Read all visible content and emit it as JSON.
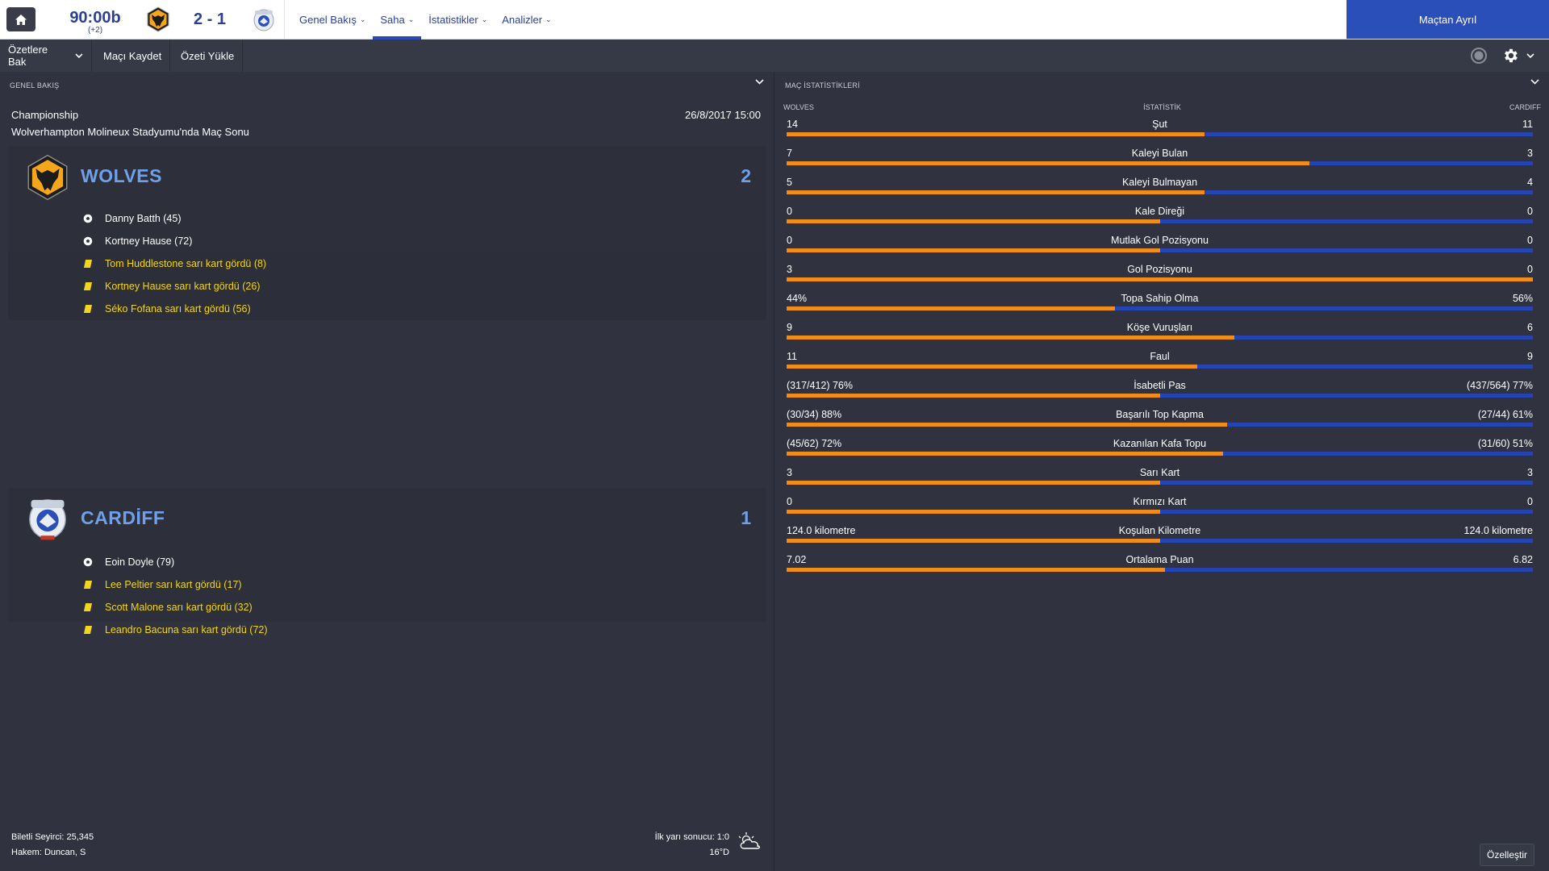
{
  "header": {
    "clock": "90:00b",
    "added_time": "(+2)",
    "score": "2 - 1",
    "home_badge": "wolves-badge-icon",
    "away_badge": "cardiff-badge-icon",
    "nav": [
      {
        "label": "Genel Bakış",
        "active": false
      },
      {
        "label": "Saha",
        "active": true
      },
      {
        "label": "İstatistikler",
        "active": false
      },
      {
        "label": "Analizler",
        "active": false
      }
    ],
    "leave_button": "Maçtan Ayrıl",
    "accent": "#2b4fb8"
  },
  "toolbar": {
    "highlights": "Özetlere Bak",
    "save_match": "Maçı Kaydet",
    "load_summary": "Özeti Yükle"
  },
  "overview": {
    "title": "GENEL BAKIŞ",
    "competition": "Championship",
    "venue": "Wolverhampton Molineux Stadyumu'nda Maç Sonu",
    "kickoff": "26/8/2017 15:00",
    "home": {
      "name": "WOLVES",
      "goals": "2",
      "events": [
        {
          "type": "goal",
          "text": "Danny Batth (45)"
        },
        {
          "type": "goal",
          "text": "Kortney Hause (72)"
        },
        {
          "type": "yellow",
          "text": "Tom Huddlestone sarı kart gördü (8)"
        },
        {
          "type": "yellow",
          "text": "Kortney Hause sarı kart gördü (26)"
        },
        {
          "type": "yellow",
          "text": "Séko Fofana sarı kart gördü (56)"
        }
      ]
    },
    "away": {
      "name": "CARDİFF",
      "goals": "1",
      "events": [
        {
          "type": "goal",
          "text": "Eoin Doyle (79)"
        },
        {
          "type": "yellow",
          "text": "Lee Peltier sarı kart gördü (17)"
        },
        {
          "type": "yellow",
          "text": "Scott Malone sarı kart gördü (32)"
        },
        {
          "type": "yellow",
          "text": "Leandro Bacuna sarı kart gördü (72)"
        }
      ]
    },
    "attendance": "Biletli Seyirci: 25,345",
    "referee": "Hakem: Duncan, S",
    "half_time": "İlk yarı sonucu: 1:0",
    "temperature": "16°D",
    "weather_icon": "cloudy-weather-icon"
  },
  "stats": {
    "title": "MAÇ İSTATİSTİKLERİ",
    "home_label": "WOLVES",
    "stat_label": "İSTATİSTİK",
    "away_label": "CARDIFF",
    "home_color": "#f08c1a",
    "away_color": "#2544b4",
    "rows": [
      {
        "label": "Şut",
        "home": "14",
        "away": "11",
        "share": 0.56
      },
      {
        "label": "Kaleyi Bulan",
        "home": "7",
        "away": "3",
        "share": 0.7
      },
      {
        "label": "Kaleyi Bulmayan",
        "home": "5",
        "away": "4",
        "share": 0.56
      },
      {
        "label": "Kale Direği",
        "home": "0",
        "away": "0",
        "share": 0.5
      },
      {
        "label": "Mutlak Gol Pozisyonu",
        "home": "0",
        "away": "0",
        "share": 0.5
      },
      {
        "label": "Gol Pozisyonu",
        "home": "3",
        "away": "0",
        "share": 1.0
      },
      {
        "label": "Topa Sahip Olma",
        "home": "44%",
        "away": "56%",
        "share": 0.44
      },
      {
        "label": "Köşe Vuruşları",
        "home": "9",
        "away": "6",
        "share": 0.6
      },
      {
        "label": "Faul",
        "home": "11",
        "away": "9",
        "share": 0.55
      },
      {
        "label": "İsabetli Pas",
        "home": "(317/412) 76%",
        "away": "(437/564) 77%",
        "share": 0.5
      },
      {
        "label": "Başarılı Top Kapma",
        "home": "(30/34) 88%",
        "away": "(27/44) 61%",
        "share": 0.59
      },
      {
        "label": "Kazanılan Kafa Topu",
        "home": "(45/62) 72%",
        "away": "(31/60) 51%",
        "share": 0.585
      },
      {
        "label": "Sarı Kart",
        "home": "3",
        "away": "3",
        "share": 0.5
      },
      {
        "label": "Kırmızı Kart",
        "home": "0",
        "away": "0",
        "share": 0.5
      },
      {
        "label": "Koşulan Kilometre",
        "home": "124.0 kilometre",
        "away": "124.0 kilometre",
        "share": 0.5
      },
      {
        "label": "Ortalama Puan",
        "home": "7.02",
        "away": "6.82",
        "share": 0.507
      }
    ],
    "customize_button": "Özelleştir"
  }
}
